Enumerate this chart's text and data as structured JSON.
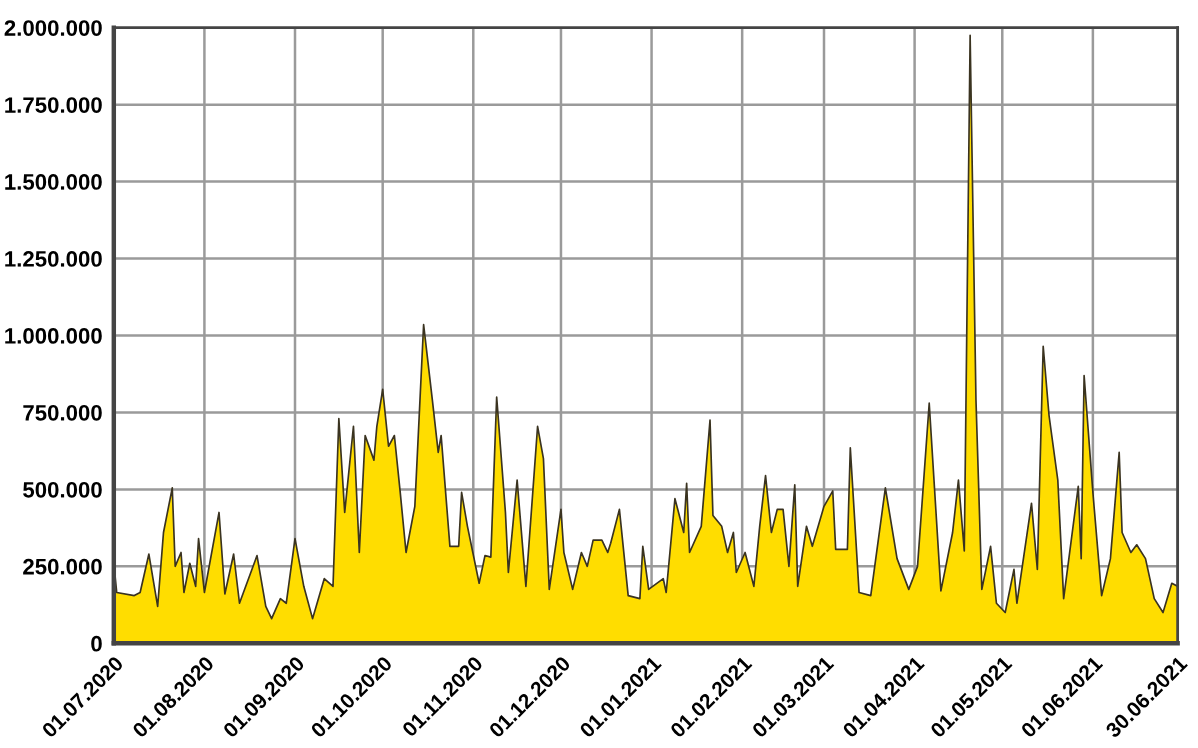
{
  "chart_data": {
    "type": "area",
    "x": [
      "2020-07-01",
      "2020-07-02",
      "2020-07-08",
      "2020-07-10",
      "2020-07-13",
      "2020-07-16",
      "2020-07-18",
      "2020-07-21",
      "2020-07-22",
      "2020-07-24",
      "2020-07-25",
      "2020-07-27",
      "2020-07-29",
      "2020-07-30",
      "2020-08-01",
      "2020-08-06",
      "2020-08-08",
      "2020-08-11",
      "2020-08-13",
      "2020-08-19",
      "2020-08-22",
      "2020-08-24",
      "2020-08-27",
      "2020-08-29",
      "2020-09-01",
      "2020-09-04",
      "2020-09-07",
      "2020-09-11",
      "2020-09-14",
      "2020-09-16",
      "2020-09-18",
      "2020-09-21",
      "2020-09-23",
      "2020-09-25",
      "2020-09-28",
      "2020-09-29",
      "2020-10-01",
      "2020-10-03",
      "2020-10-05",
      "2020-10-07",
      "2020-10-09",
      "2020-10-12",
      "2020-10-15",
      "2020-10-18",
      "2020-10-20",
      "2020-10-21",
      "2020-10-24",
      "2020-10-27",
      "2020-10-28",
      "2020-10-30",
      "2020-11-03",
      "2020-11-05",
      "2020-11-07",
      "2020-11-09",
      "2020-11-12",
      "2020-11-13",
      "2020-11-16",
      "2020-11-19",
      "2020-11-23",
      "2020-11-25",
      "2020-11-27",
      "2020-12-01",
      "2020-12-02",
      "2020-12-05",
      "2020-12-08",
      "2020-12-10",
      "2020-12-12",
      "2020-12-15",
      "2020-12-17",
      "2020-12-18",
      "2020-12-21",
      "2020-12-24",
      "2020-12-28",
      "2020-12-29",
      "2020-12-31",
      "2021-01-05",
      "2021-01-06",
      "2021-01-09",
      "2021-01-12",
      "2021-01-13",
      "2021-01-14",
      "2021-01-18",
      "2021-01-21",
      "2021-01-22",
      "2021-01-25",
      "2021-01-27",
      "2021-01-29",
      "2021-01-30",
      "2021-02-02",
      "2021-02-05",
      "2021-02-07",
      "2021-02-09",
      "2021-02-11",
      "2021-02-13",
      "2021-02-15",
      "2021-02-17",
      "2021-02-19",
      "2021-02-20",
      "2021-02-23",
      "2021-02-25",
      "2021-03-01",
      "2021-03-04",
      "2021-03-05",
      "2021-03-09",
      "2021-03-10",
      "2021-03-13",
      "2021-03-17",
      "2021-03-22",
      "2021-03-26",
      "2021-03-30",
      "2021-04-02",
      "2021-04-06",
      "2021-04-10",
      "2021-04-14",
      "2021-04-16",
      "2021-04-18",
      "2021-04-20",
      "2021-04-22",
      "2021-04-24",
      "2021-04-27",
      "2021-04-29",
      "2021-05-02",
      "2021-05-05",
      "2021-05-06",
      "2021-05-11",
      "2021-05-13",
      "2021-05-15",
      "2021-05-17",
      "2021-05-20",
      "2021-05-22",
      "2021-05-27",
      "2021-05-28",
      "2021-05-29",
      "2021-06-01",
      "2021-06-04",
      "2021-06-07",
      "2021-06-10",
      "2021-06-11",
      "2021-06-14",
      "2021-06-16",
      "2021-06-19",
      "2021-06-22",
      "2021-06-25",
      "2021-06-28",
      "2021-06-30"
    ],
    "series": [
      {
        "color": "#ffdd00",
        "values": [
          260000,
          165000,
          155000,
          165000,
          290000,
          120000,
          360000,
          505000,
          250000,
          295000,
          165000,
          260000,
          185000,
          340000,
          165000,
          425000,
          160000,
          290000,
          130000,
          285000,
          120000,
          80000,
          145000,
          130000,
          340000,
          185000,
          80000,
          210000,
          185000,
          730000,
          425000,
          705000,
          295000,
          675000,
          595000,
          705000,
          825000,
          640000,
          675000,
          490000,
          295000,
          445000,
          1035000,
          790000,
          620000,
          675000,
          315000,
          315000,
          490000,
          380000,
          195000,
          285000,
          280000,
          800000,
          425000,
          230000,
          530000,
          185000,
          705000,
          600000,
          175000,
          435000,
          295000,
          175000,
          295000,
          250000,
          335000,
          335000,
          295000,
          325000,
          435000,
          155000,
          145000,
          315000,
          175000,
          210000,
          165000,
          470000,
          360000,
          520000,
          295000,
          380000,
          725000,
          415000,
          380000,
          295000,
          360000,
          230000,
          295000,
          185000,
          380000,
          545000,
          360000,
          435000,
          435000,
          250000,
          515000,
          185000,
          380000,
          315000,
          445000,
          495000,
          305000,
          305000,
          635000,
          165000,
          155000,
          505000,
          275000,
          175000,
          250000,
          780000,
          170000,
          360000,
          530000,
          300000,
          1975000,
          790000,
          175000,
          315000,
          130000,
          100000,
          240000,
          130000,
          455000,
          240000,
          965000,
          740000,
          530000,
          145000,
          510000,
          275000,
          870000,
          490000,
          155000,
          275000,
          620000,
          360000,
          295000,
          320000,
          275000,
          145000,
          100000,
          195000,
          185000
        ]
      }
    ],
    "xlim": [
      "2020-07-01",
      "2021-06-30"
    ],
    "xticks": [
      {
        "value": "2020-07-01",
        "label": "01.07.2020"
      },
      {
        "value": "2020-08-01",
        "label": "01.08.2020"
      },
      {
        "value": "2020-09-01",
        "label": "01.09.2020"
      },
      {
        "value": "2020-10-01",
        "label": "01.10.2020"
      },
      {
        "value": "2020-11-01",
        "label": "01.11.2020"
      },
      {
        "value": "2020-12-01",
        "label": "01.12.2020"
      },
      {
        "value": "2021-01-01",
        "label": "01.01.2021"
      },
      {
        "value": "2021-02-01",
        "label": "01.02.2021"
      },
      {
        "value": "2021-03-01",
        "label": "01.03.2021"
      },
      {
        "value": "2021-04-01",
        "label": "01.04.2021"
      },
      {
        "value": "2021-05-01",
        "label": "01.05.2021"
      },
      {
        "value": "2021-06-01",
        "label": "01.06.2021"
      },
      {
        "value": "2021-06-30",
        "label": "30.06.2021"
      }
    ],
    "ylim": [
      0,
      2000000
    ],
    "yticks": [
      0,
      {
        "value": 250000,
        "label": "250.000"
      },
      {
        "value": 500000,
        "label": "500.000"
      },
      {
        "value": 750000,
        "label": "750.000"
      },
      {
        "value": 1000000,
        "label": "1.000.000"
      },
      {
        "value": 1250000,
        "label": "1.250.000"
      },
      {
        "value": 1500000,
        "label": "1.500.000"
      },
      {
        "value": 1750000,
        "label": "1.750.000"
      },
      {
        "value": 2000000,
        "label": "2.000.000"
      }
    ],
    "grid": true,
    "legend": false
  }
}
